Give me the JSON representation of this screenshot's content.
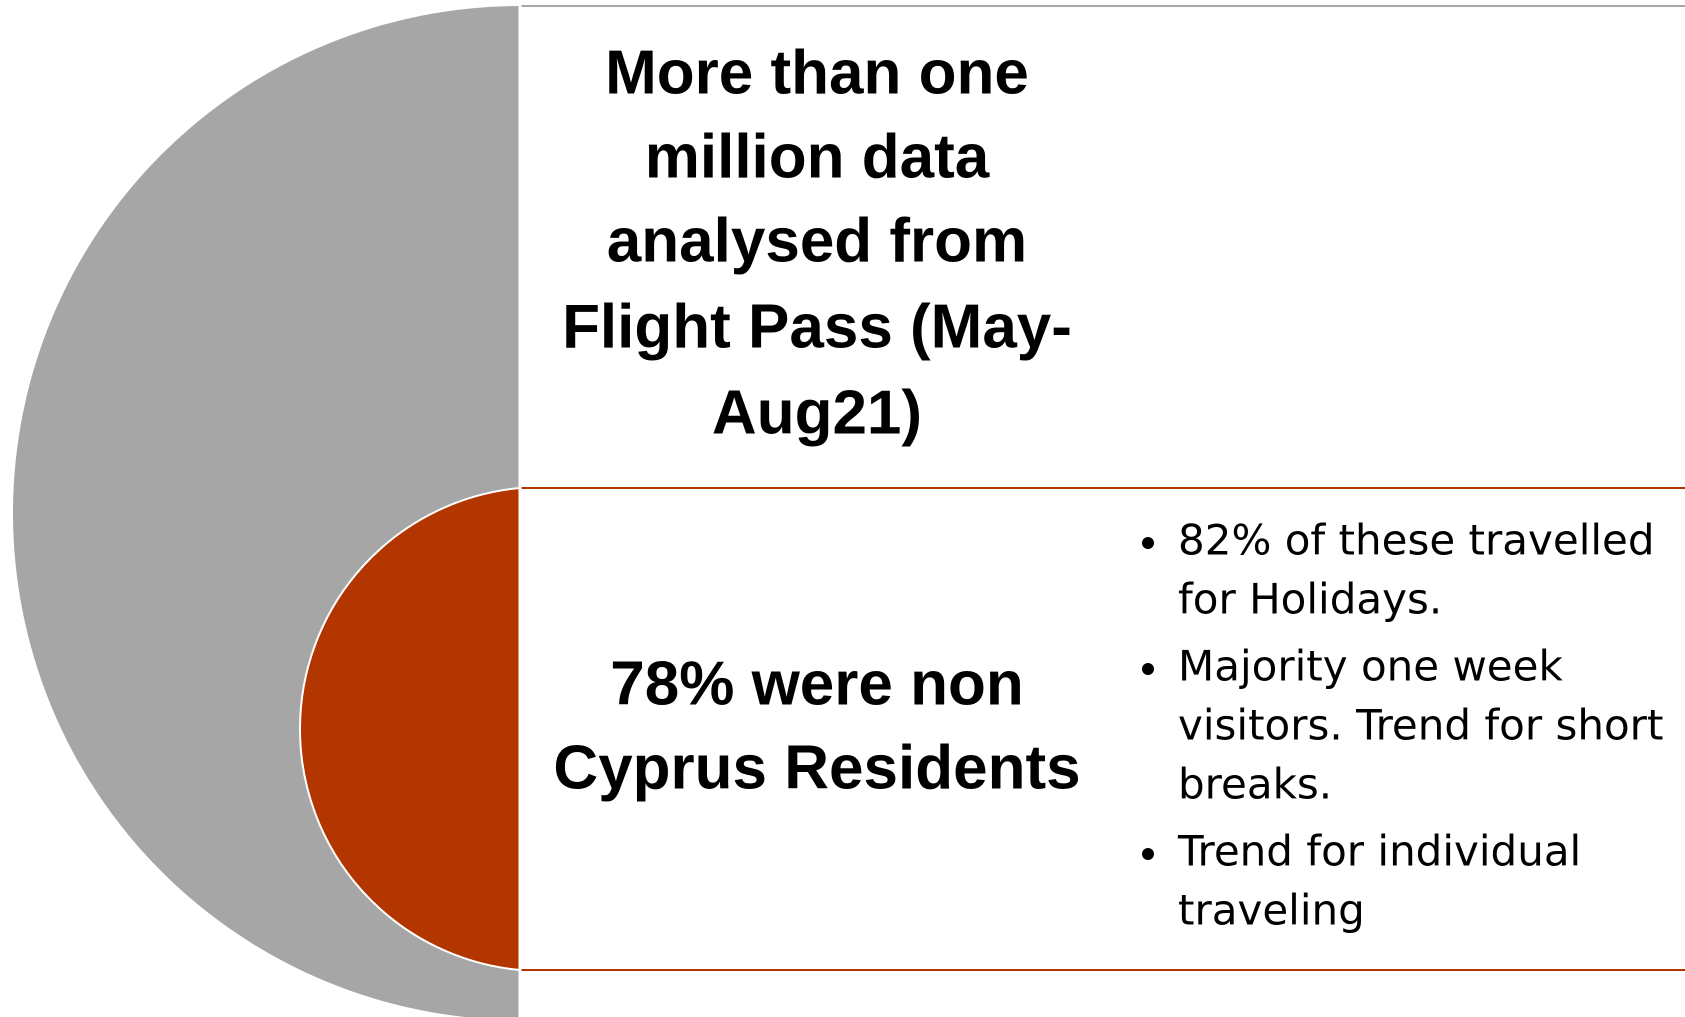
{
  "top_block": {
    "lines": [
      "More than one",
      "million data",
      "analysed from",
      "Flight Pass (May-",
      "Aug21)"
    ]
  },
  "bottom_block": {
    "lines": [
      "78% were non",
      "Cyprus Residents"
    ]
  },
  "bullets": [
    {
      "lines": [
        " 82% of these travelled",
        "for Holidays."
      ]
    },
    {
      "lines": [
        "Majority one week",
        "visitors. Trend for short",
        "breaks."
      ]
    },
    {
      "lines": [
        "Trend for individual",
        "traveling"
      ]
    }
  ]
}
